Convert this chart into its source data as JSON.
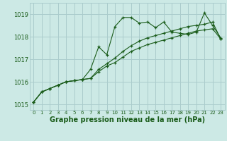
{
  "background_color": "#cce9e5",
  "grid_color": "#aacccc",
  "line_color": "#1a5c1a",
  "xlabel": "Graphe pression niveau de la mer (hPa)",
  "xlabel_fontsize": 7.0,
  "xlim": [
    -0.5,
    23.5
  ],
  "ylim": [
    1014.75,
    1019.5
  ],
  "yticks": [
    1015,
    1016,
    1017,
    1018,
    1019
  ],
  "xticks": [
    0,
    1,
    2,
    3,
    4,
    5,
    6,
    7,
    8,
    9,
    10,
    11,
    12,
    13,
    14,
    15,
    16,
    17,
    18,
    19,
    20,
    21,
    22,
    23
  ],
  "series": [
    [
      1015.1,
      1015.55,
      1015.7,
      1015.85,
      1016.0,
      1016.05,
      1016.1,
      1016.55,
      1017.55,
      1017.2,
      1018.45,
      1018.85,
      1018.85,
      1018.6,
      1018.65,
      1018.4,
      1018.65,
      1018.2,
      1018.15,
      1018.1,
      1018.2,
      1019.05,
      1018.5,
      1017.95
    ],
    [
      1015.1,
      1015.55,
      1015.7,
      1015.85,
      1016.0,
      1016.05,
      1016.1,
      1016.15,
      1016.55,
      1016.8,
      1017.05,
      1017.35,
      1017.6,
      1017.8,
      1017.95,
      1018.05,
      1018.15,
      1018.25,
      1018.35,
      1018.45,
      1018.5,
      1018.55,
      1018.65,
      1017.9
    ],
    [
      1015.1,
      1015.55,
      1015.7,
      1015.85,
      1016.0,
      1016.05,
      1016.1,
      1016.15,
      1016.45,
      1016.7,
      1016.85,
      1017.1,
      1017.35,
      1017.5,
      1017.65,
      1017.75,
      1017.85,
      1017.95,
      1018.05,
      1018.15,
      1018.25,
      1018.3,
      1018.35,
      1017.9
    ]
  ]
}
